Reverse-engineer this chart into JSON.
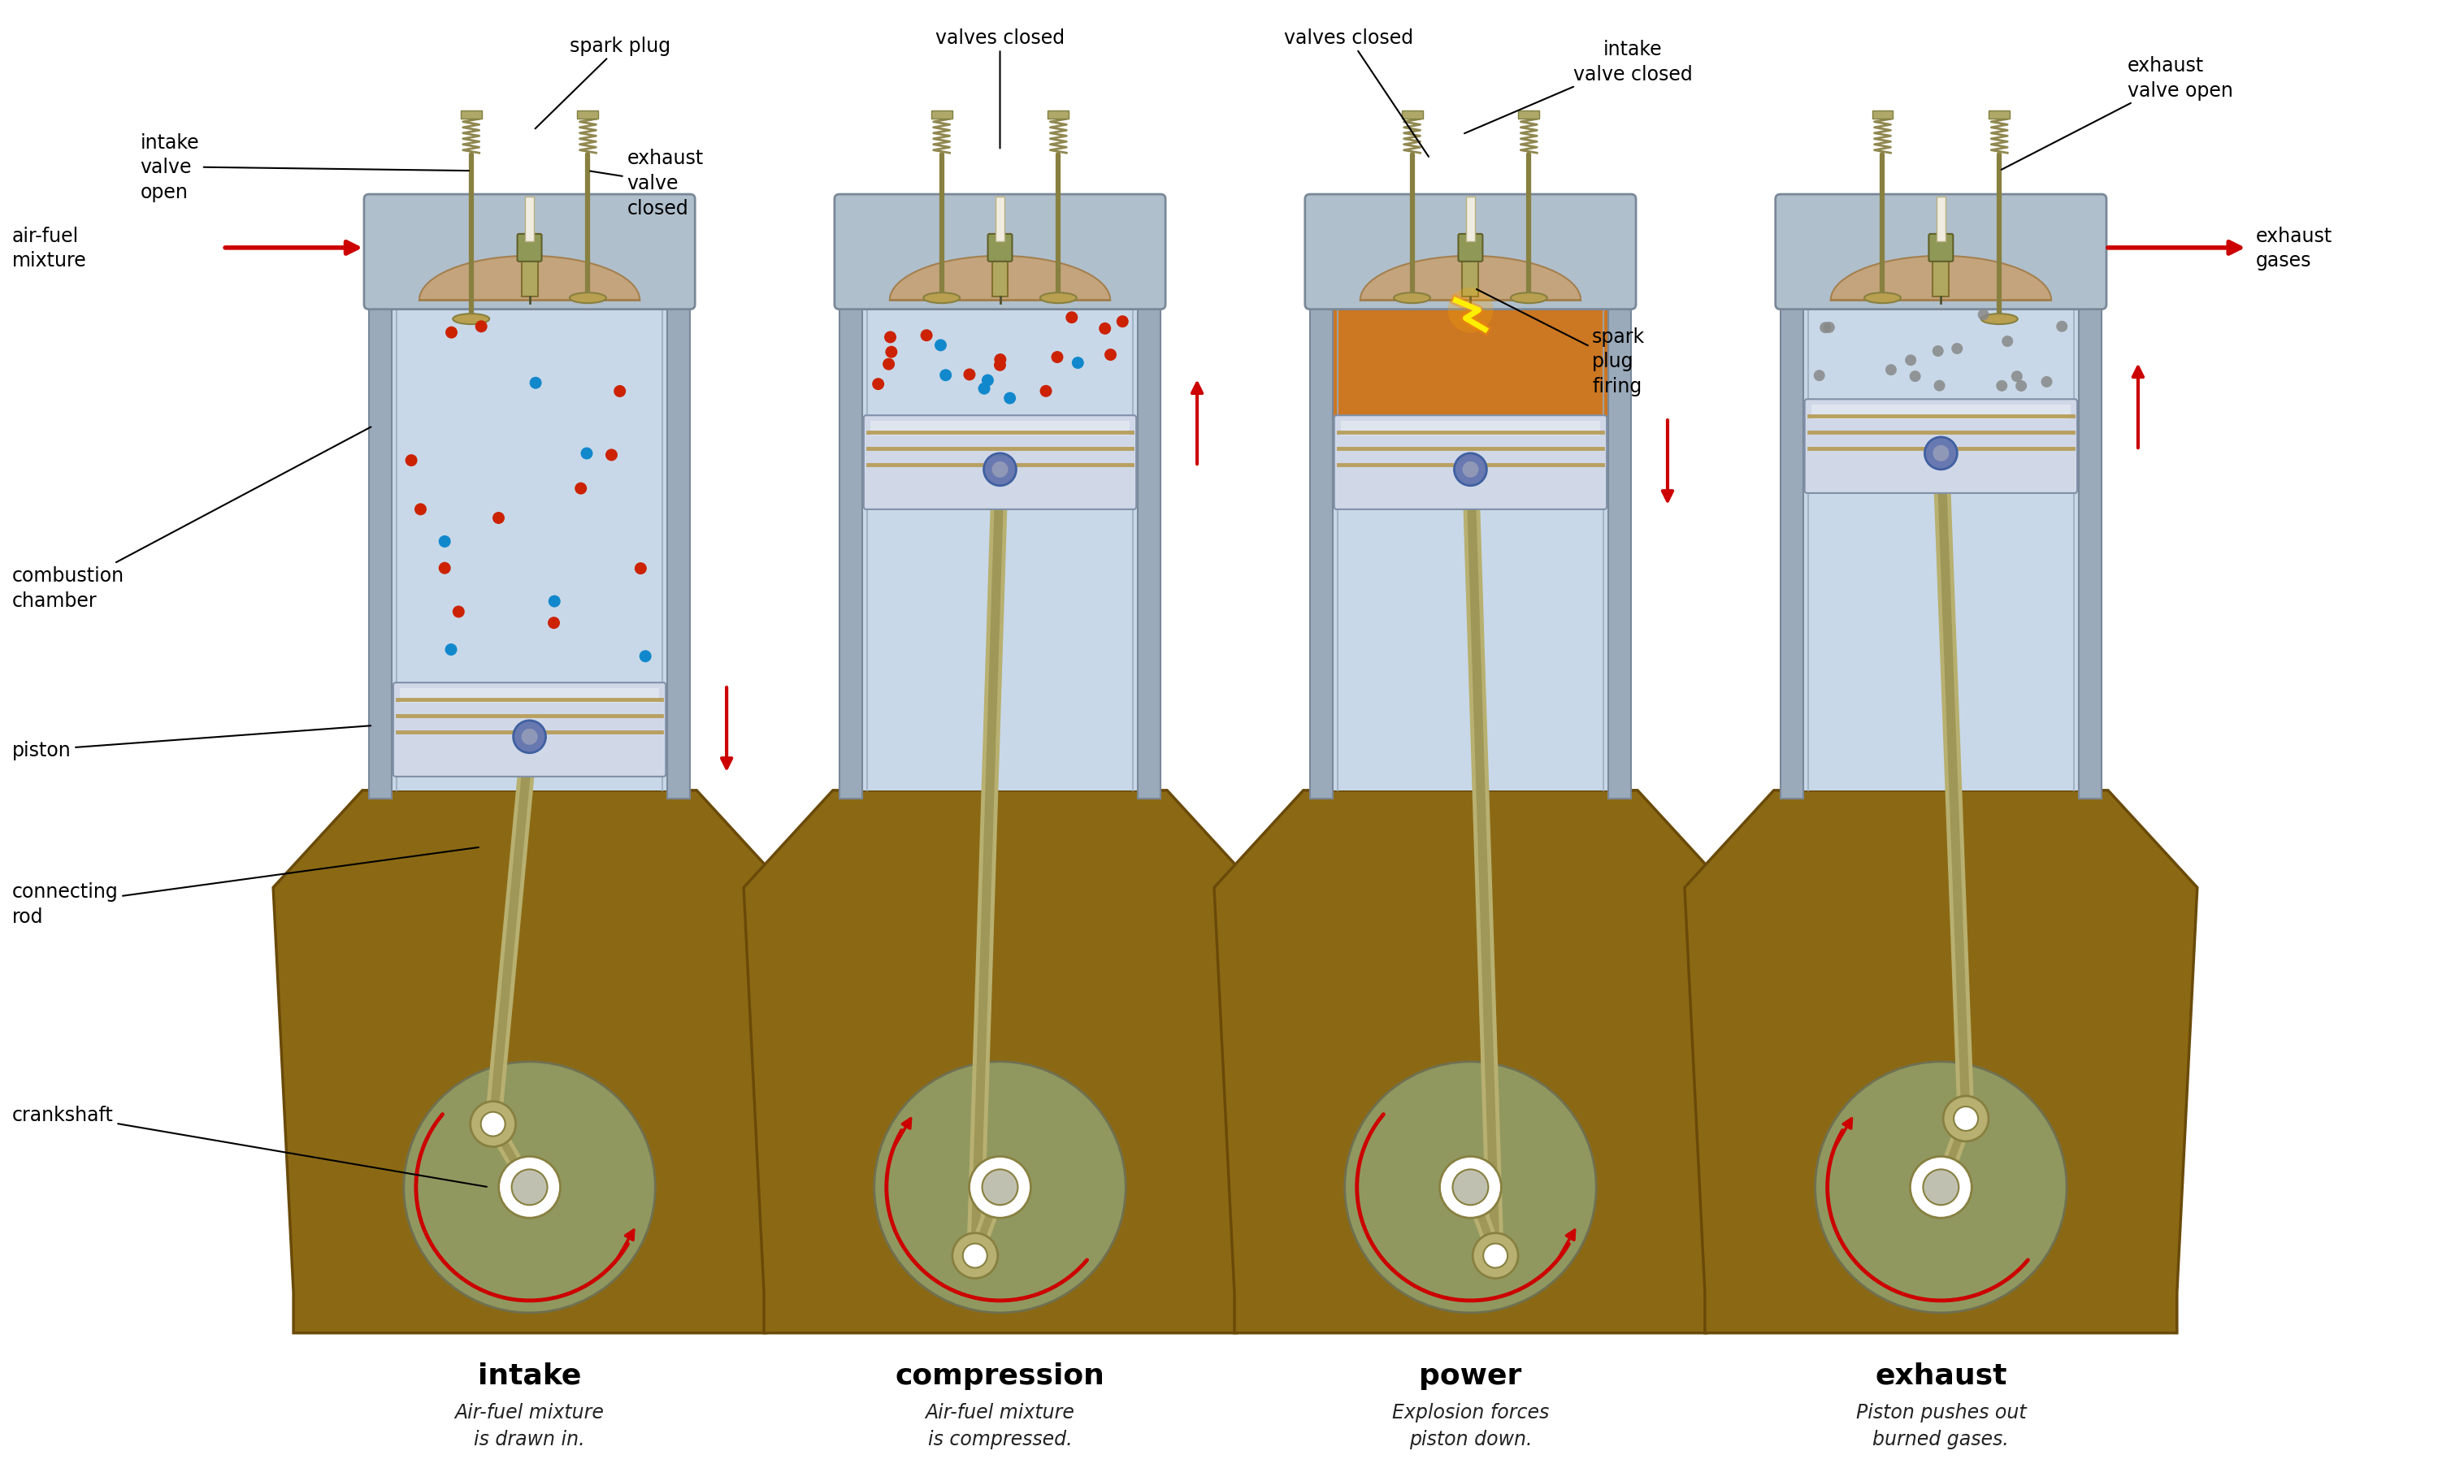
{
  "bg_color": "#ffffff",
  "wall_color": "#9aaabb",
  "wall_inner": "#b8ccd8",
  "cyl_fill": "#c8d8e8",
  "cyl_fill_grad_top": "#d8e8f5",
  "head_fill": "#b0bfcc",
  "head_inner": "#c8a870",
  "piston_fill": "#d0d8e0",
  "piston_silver": "#e0e8f0",
  "piston_ring": "#b8a060",
  "piston_pin": "#7080b0",
  "crankcase_fill": "#8B6914",
  "crankcase_inner": "#7a5810",
  "crank_fill": "#b8b070",
  "crank_dark": "#888040",
  "flywheel_fill": "#a8a870",
  "flywheel_green": "#909860",
  "red_arrow": "#cc0000",
  "dot_red": "#cc2200",
  "dot_blue": "#1188cc",
  "exhaust_dot": "#888888",
  "power_fill": "#cc7722",
  "spark_yellow": "#ffee00",
  "spark_orange": "#ff8800",
  "valve_gold": "#b8a050",
  "valve_stem": "#888040",
  "plug_body": "#b0a860",
  "plug_insul": "#f0ece0",
  "label_fs": 17,
  "title_fs": 26,
  "desc_fs": 17,
  "stage_titles": [
    "intake",
    "compression",
    "power",
    "exhaust"
  ],
  "stage_descs": [
    "Air-fuel mixture\nis drawn in.",
    "Air-fuel mixture\nis compressed.",
    "Explosion forces\npiston down.",
    "Piston pushes out\nburned gases."
  ]
}
